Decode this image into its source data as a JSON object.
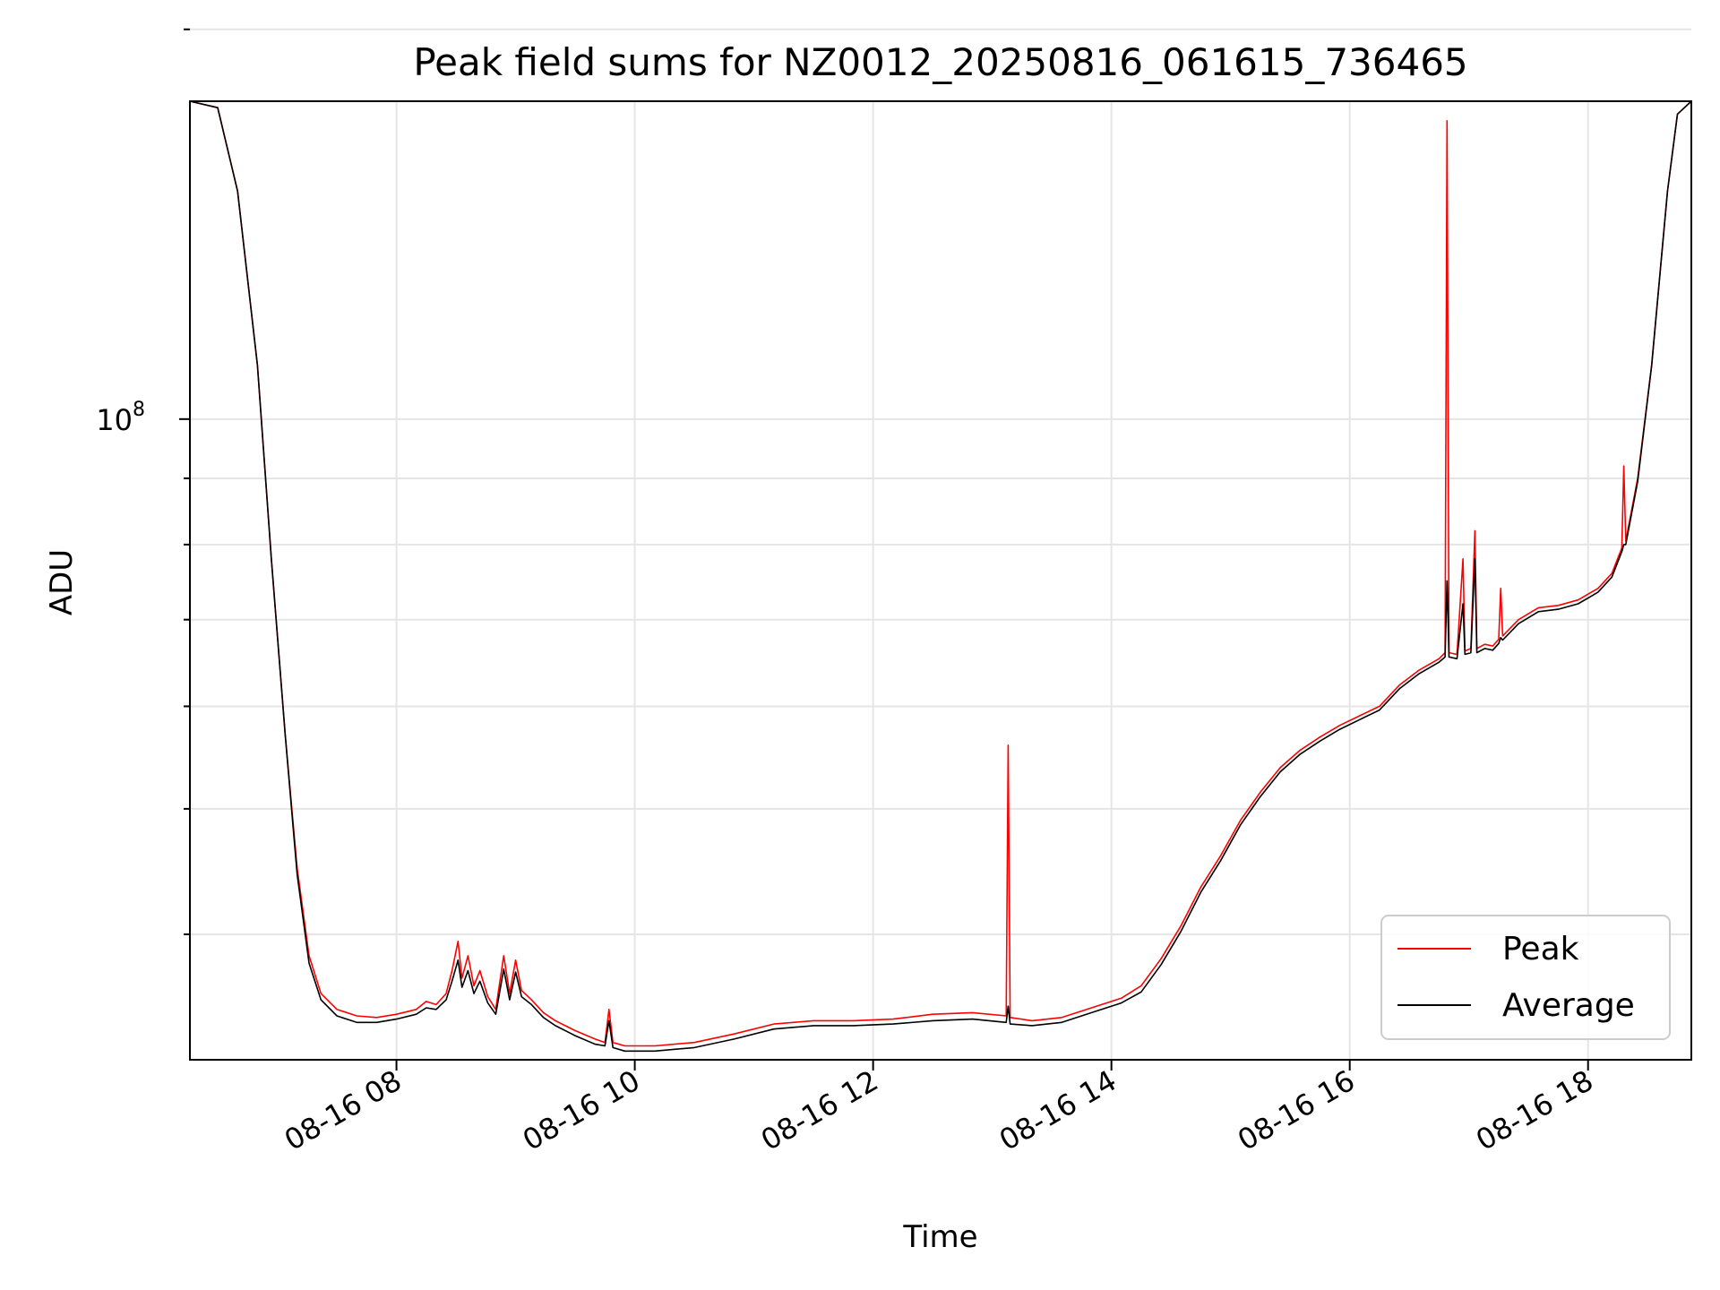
{
  "chart_data": {
    "type": "line",
    "title": "Peak field sums for NZ0012_20250816_061615_736465",
    "xlabel": "Time",
    "ylabel": "ADU",
    "y_scale": "log",
    "grid": true,
    "legend_position": "lower-right",
    "x_range": [
      "08-16 06:16",
      "08-16 18:52"
    ],
    "y_range": [
      32000000,
      176000000
    ],
    "x_ticks": [
      "08-16 08",
      "08-16 10",
      "08-16 12",
      "08-16 14",
      "08-16 16",
      "08-16 18"
    ],
    "y_ticks": [
      {
        "value": 100000000,
        "base": "10",
        "exponent": "8"
      }
    ],
    "y_minor_ticks": [
      40000000,
      50000000,
      60000000,
      70000000,
      80000000,
      90000000,
      200000000
    ],
    "series": [
      {
        "name": "Peak",
        "color": "#ff0000",
        "points": [
          [
            "08-16 06:16",
            176000000
          ],
          [
            "08-16 06:30",
            174000000
          ],
          [
            "08-16 06:40",
            150000000
          ],
          [
            "08-16 06:50",
            110000000
          ],
          [
            "08-16 06:57",
            78000000
          ],
          [
            "08-16 07:04",
            57000000
          ],
          [
            "08-16 07:10",
            45000000
          ],
          [
            "08-16 07:16",
            38500000
          ],
          [
            "08-16 07:22",
            36000000
          ],
          [
            "08-16 07:30",
            35000000
          ],
          [
            "08-16 07:40",
            34600000
          ],
          [
            "08-16 07:50",
            34500000
          ],
          [
            "08-16 08:00",
            34700000
          ],
          [
            "08-16 08:10",
            35000000
          ],
          [
            "08-16 08:15",
            35500000
          ],
          [
            "08-16 08:20",
            35300000
          ],
          [
            "08-16 08:25",
            36000000
          ],
          [
            "08-16 08:28",
            37500000
          ],
          [
            "08-16 08:31",
            39500000
          ],
          [
            "08-16 08:33",
            37000000
          ],
          [
            "08-16 08:36",
            38500000
          ],
          [
            "08-16 08:39",
            36500000
          ],
          [
            "08-16 08:42",
            37500000
          ],
          [
            "08-16 08:46",
            35800000
          ],
          [
            "08-16 08:50",
            35000000
          ],
          [
            "08-16 08:54",
            38500000
          ],
          [
            "08-16 08:57",
            36000000
          ],
          [
            "08-16 09:00",
            38200000
          ],
          [
            "08-16 09:03",
            36200000
          ],
          [
            "08-16 09:08",
            35600000
          ],
          [
            "08-16 09:14",
            34800000
          ],
          [
            "08-16 09:20",
            34300000
          ],
          [
            "08-16 09:30",
            33700000
          ],
          [
            "08-16 09:40",
            33200000
          ],
          [
            "08-16 09:45",
            33000000
          ],
          [
            "08-16 09:47",
            35000000
          ],
          [
            "08-16 09:49",
            33000000
          ],
          [
            "08-16 09:55",
            32800000
          ],
          [
            "08-16 10:10",
            32800000
          ],
          [
            "08-16 10:30",
            33000000
          ],
          [
            "08-16 10:50",
            33500000
          ],
          [
            "08-16 11:10",
            34100000
          ],
          [
            "08-16 11:30",
            34300000
          ],
          [
            "08-16 11:50",
            34300000
          ],
          [
            "08-16 12:10",
            34400000
          ],
          [
            "08-16 12:30",
            34700000
          ],
          [
            "08-16 12:50",
            34800000
          ],
          [
            "08-16 13:07",
            34600000
          ],
          [
            "08-16 13:08",
            56000000
          ],
          [
            "08-16 13:09",
            34500000
          ],
          [
            "08-16 13:20",
            34300000
          ],
          [
            "08-16 13:35",
            34500000
          ],
          [
            "08-16 13:50",
            35100000
          ],
          [
            "08-16 14:05",
            35700000
          ],
          [
            "08-16 14:15",
            36500000
          ],
          [
            "08-16 14:25",
            38300000
          ],
          [
            "08-16 14:35",
            40600000
          ],
          [
            "08-16 14:45",
            43500000
          ],
          [
            "08-16 14:55",
            46000000
          ],
          [
            "08-16 15:05",
            49000000
          ],
          [
            "08-16 15:15",
            51500000
          ],
          [
            "08-16 15:25",
            53800000
          ],
          [
            "08-16 15:35",
            55500000
          ],
          [
            "08-16 15:45",
            56800000
          ],
          [
            "08-16 15:55",
            58000000
          ],
          [
            "08-16 16:05",
            59000000
          ],
          [
            "08-16 16:15",
            60000000
          ],
          [
            "08-16 16:25",
            62300000
          ],
          [
            "08-16 16:35",
            64000000
          ],
          [
            "08-16 16:45",
            65300000
          ],
          [
            "08-16 16:48",
            66000000
          ],
          [
            "08-16 16:49",
            170000000
          ],
          [
            "08-16 16:50",
            66000000
          ],
          [
            "08-16 16:54",
            65800000
          ],
          [
            "08-16 16:57",
            78000000
          ],
          [
            "08-16 16:58",
            66200000
          ],
          [
            "08-16 17:01",
            66500000
          ],
          [
            "08-16 17:03",
            82000000
          ],
          [
            "08-16 17:04",
            66500000
          ],
          [
            "08-16 17:08",
            67000000
          ],
          [
            "08-16 17:12",
            66800000
          ],
          [
            "08-16 17:15",
            67600000
          ],
          [
            "08-16 17:16",
            74000000
          ],
          [
            "08-16 17:17",
            68000000
          ],
          [
            "08-16 17:25",
            70000000
          ],
          [
            "08-16 17:35",
            71500000
          ],
          [
            "08-16 17:45",
            71800000
          ],
          [
            "08-16 17:55",
            72500000
          ],
          [
            "08-16 18:05",
            74000000
          ],
          [
            "08-16 18:12",
            76000000
          ],
          [
            "08-16 18:17",
            79500000
          ],
          [
            "08-16 18:18",
            92000000
          ],
          [
            "08-16 18:19",
            80500000
          ],
          [
            "08-16 18:25",
            90000000
          ],
          [
            "08-16 18:32",
            110000000
          ],
          [
            "08-16 18:40",
            150000000
          ],
          [
            "08-16 18:45",
            172000000
          ],
          [
            "08-16 18:52",
            176000000
          ]
        ]
      },
      {
        "name": "Average",
        "color": "#000000",
        "points": [
          [
            "08-16 06:16",
            176000000
          ],
          [
            "08-16 06:30",
            174000000
          ],
          [
            "08-16 06:40",
            150000000
          ],
          [
            "08-16 06:50",
            110000000
          ],
          [
            "08-16 06:57",
            78000000
          ],
          [
            "08-16 07:04",
            57000000
          ],
          [
            "08-16 07:10",
            44500000
          ],
          [
            "08-16 07:16",
            38000000
          ],
          [
            "08-16 07:22",
            35600000
          ],
          [
            "08-16 07:30",
            34600000
          ],
          [
            "08-16 07:40",
            34200000
          ],
          [
            "08-16 07:50",
            34200000
          ],
          [
            "08-16 08:00",
            34400000
          ],
          [
            "08-16 08:10",
            34700000
          ],
          [
            "08-16 08:15",
            35100000
          ],
          [
            "08-16 08:20",
            35000000
          ],
          [
            "08-16 08:25",
            35600000
          ],
          [
            "08-16 08:28",
            36800000
          ],
          [
            "08-16 08:31",
            38200000
          ],
          [
            "08-16 08:33",
            36400000
          ],
          [
            "08-16 08:36",
            37500000
          ],
          [
            "08-16 08:39",
            36000000
          ],
          [
            "08-16 08:42",
            36800000
          ],
          [
            "08-16 08:46",
            35400000
          ],
          [
            "08-16 08:50",
            34700000
          ],
          [
            "08-16 08:54",
            37600000
          ],
          [
            "08-16 08:57",
            35600000
          ],
          [
            "08-16 09:00",
            37400000
          ],
          [
            "08-16 09:03",
            35800000
          ],
          [
            "08-16 09:08",
            35300000
          ],
          [
            "08-16 09:14",
            34500000
          ],
          [
            "08-16 09:20",
            34000000
          ],
          [
            "08-16 09:30",
            33400000
          ],
          [
            "08-16 09:40",
            32900000
          ],
          [
            "08-16 09:45",
            32800000
          ],
          [
            "08-16 09:47",
            34300000
          ],
          [
            "08-16 09:49",
            32700000
          ],
          [
            "08-16 09:55",
            32500000
          ],
          [
            "08-16 10:10",
            32500000
          ],
          [
            "08-16 10:30",
            32700000
          ],
          [
            "08-16 10:50",
            33200000
          ],
          [
            "08-16 11:10",
            33800000
          ],
          [
            "08-16 11:30",
            34000000
          ],
          [
            "08-16 11:50",
            34000000
          ],
          [
            "08-16 12:10",
            34100000
          ],
          [
            "08-16 12:30",
            34300000
          ],
          [
            "08-16 12:50",
            34400000
          ],
          [
            "08-16 13:07",
            34200000
          ],
          [
            "08-16 13:08",
            35200000
          ],
          [
            "08-16 13:09",
            34100000
          ],
          [
            "08-16 13:20",
            34000000
          ],
          [
            "08-16 13:35",
            34200000
          ],
          [
            "08-16 13:50",
            34800000
          ],
          [
            "08-16 14:05",
            35400000
          ],
          [
            "08-16 14:15",
            36100000
          ],
          [
            "08-16 14:25",
            37900000
          ],
          [
            "08-16 14:35",
            40200000
          ],
          [
            "08-16 14:45",
            43100000
          ],
          [
            "08-16 14:55",
            45600000
          ],
          [
            "08-16 15:05",
            48600000
          ],
          [
            "08-16 15:15",
            51100000
          ],
          [
            "08-16 15:25",
            53400000
          ],
          [
            "08-16 15:35",
            55100000
          ],
          [
            "08-16 15:45",
            56400000
          ],
          [
            "08-16 15:55",
            57600000
          ],
          [
            "08-16 16:05",
            58600000
          ],
          [
            "08-16 16:15",
            59600000
          ],
          [
            "08-16 16:25",
            61900000
          ],
          [
            "08-16 16:35",
            63600000
          ],
          [
            "08-16 16:45",
            64900000
          ],
          [
            "08-16 16:48",
            65500000
          ],
          [
            "08-16 16:49",
            75000000
          ],
          [
            "08-16 16:50",
            65500000
          ],
          [
            "08-16 16:54",
            65300000
          ],
          [
            "08-16 16:57",
            72000000
          ],
          [
            "08-16 16:58",
            65800000
          ],
          [
            "08-16 17:01",
            66000000
          ],
          [
            "08-16 17:03",
            78000000
          ],
          [
            "08-16 17:04",
            66000000
          ],
          [
            "08-16 17:08",
            66500000
          ],
          [
            "08-16 17:12",
            66300000
          ],
          [
            "08-16 17:15",
            67100000
          ],
          [
            "08-16 17:16",
            67800000
          ],
          [
            "08-16 17:17",
            67500000
          ],
          [
            "08-16 17:25",
            69500000
          ],
          [
            "08-16 17:35",
            71000000
          ],
          [
            "08-16 17:45",
            71300000
          ],
          [
            "08-16 17:55",
            72000000
          ],
          [
            "08-16 18:05",
            73500000
          ],
          [
            "08-16 18:12",
            75500000
          ],
          [
            "08-16 18:17",
            79000000
          ],
          [
            "08-16 18:18",
            80000000
          ],
          [
            "08-16 18:19",
            80000000
          ],
          [
            "08-16 18:25",
            89500000
          ],
          [
            "08-16 18:32",
            110000000
          ],
          [
            "08-16 18:40",
            150000000
          ],
          [
            "08-16 18:45",
            172000000
          ],
          [
            "08-16 18:52",
            176000000
          ]
        ]
      }
    ]
  }
}
